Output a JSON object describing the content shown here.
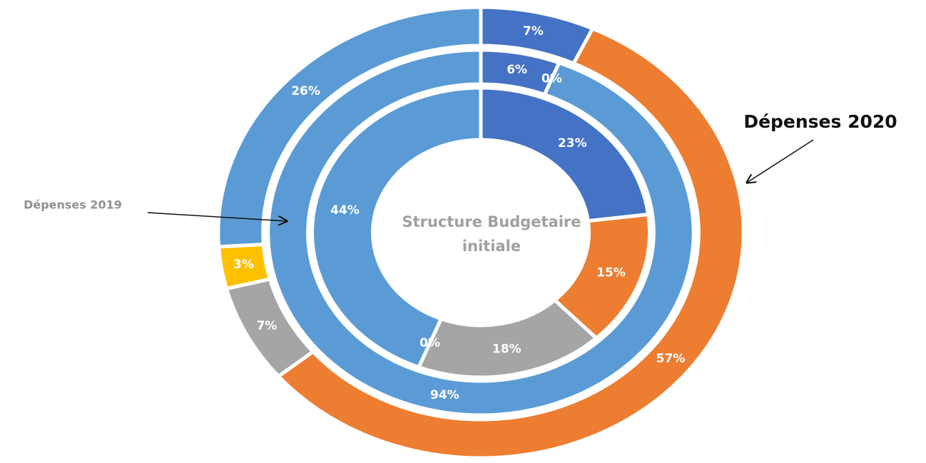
{
  "chart_data": {
    "type": "donut",
    "center_label": [
      "Structure Budgetaire",
      "initiale"
    ],
    "rings": [
      {
        "values": [
          7,
          57,
          7,
          3,
          26
        ],
        "value_labels": [
          "7%",
          "57%",
          "7%",
          "3%",
          "26%"
        ],
        "colors": [
          "#4472c4",
          "#ed7d31",
          "#a5a5a5",
          "#ffc000",
          "#5b9bd5"
        ]
      },
      {
        "values": [
          6,
          0,
          94
        ],
        "value_labels": [
          "6%",
          "0%",
          "94%"
        ],
        "colors": [
          "#4472c4",
          "#a5a5a5",
          "#5b9bd5"
        ]
      },
      {
        "values": [
          23,
          15,
          18,
          0,
          44
        ],
        "value_labels": [
          "23%",
          "15%",
          "18%",
          "0%",
          "44%"
        ],
        "colors": [
          "#4472c4",
          "#ed7d31",
          "#a5a5a5",
          "#ffc000",
          "#5b9bd5"
        ]
      }
    ],
    "annotations": [
      "Dépenses 2020",
      "Dépenses 2019"
    ]
  }
}
